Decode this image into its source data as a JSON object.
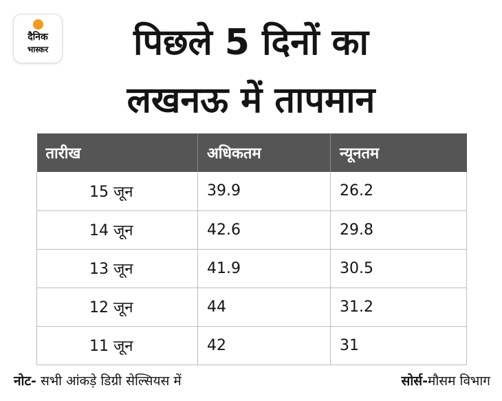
{
  "logo": {
    "line1": "दैनिक",
    "line2": "भास्कर",
    "sun_color": "#f39a1e"
  },
  "title": {
    "line1": "पिछले 5 दिनों का",
    "line2": "लखनऊ में तापमान"
  },
  "table": {
    "header_color": "#555555",
    "headers": [
      "तारीख",
      "अधिकतम",
      "न्यूनतम"
    ],
    "rows": [
      [
        "15 जून",
        "39.9",
        "26.2"
      ],
      [
        "14 जून",
        "42.6",
        "29.8"
      ],
      [
        "13 जून",
        "41.9",
        "30.5"
      ],
      [
        "12 जून",
        "44",
        "31.2"
      ],
      [
        "11 जून",
        "42",
        "31"
      ]
    ]
  },
  "footer": {
    "note_label": "नोट-",
    "note_text": " सभी आंकड़े डिग्री सेल्सियस में",
    "source_label": "सोर्स-",
    "source_text": "मौसम विभाग"
  }
}
